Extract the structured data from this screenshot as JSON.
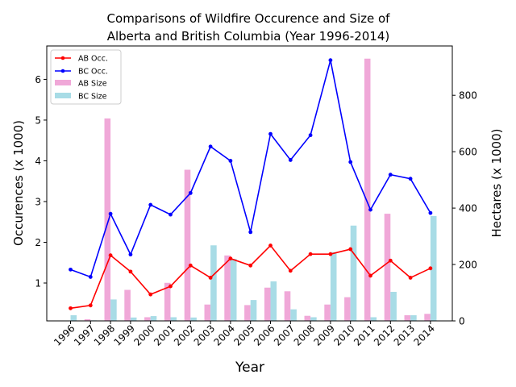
{
  "chart_data": {
    "type": "bar+line",
    "title_line1": "Comparisons of Wildfire Occurence and Size of",
    "title_line2": "Alberta and British Columbia (Year 1996-2014)",
    "xlabel": "Year",
    "ylabel_left": "Occurences (x 1000)",
    "ylabel_right": "Hectares (x 1000)",
    "categories": [
      "1996",
      "1997",
      "1998",
      "1999",
      "2000",
      "2001",
      "2002",
      "2003",
      "2004",
      "2005",
      "2006",
      "2007",
      "2008",
      "2009",
      "2010",
      "2011",
      "2012",
      "2013",
      "2014"
    ],
    "y_left_ticks": [
      "1",
      "2",
      "3",
      "4",
      "5",
      "6"
    ],
    "y_right_ticks": [
      "0",
      "200",
      "400",
      "600",
      "800"
    ],
    "y_left_lim": [
      0.07,
      6.82
    ],
    "y_right_lim": [
      0,
      975
    ],
    "lines": [
      {
        "name": "AB Occ.",
        "color": "#ff0000",
        "values": [
          0.38,
          0.45,
          1.68,
          1.28,
          0.72,
          0.92,
          1.43,
          1.13,
          1.6,
          1.43,
          1.92,
          1.3,
          1.71,
          1.71,
          1.83,
          1.18,
          1.55,
          1.13,
          1.36
        ]
      },
      {
        "name": "BC Occ.",
        "color": "#0000ff",
        "values": [
          1.33,
          1.15,
          2.7,
          1.7,
          2.92,
          2.68,
          3.21,
          4.35,
          4.0,
          2.25,
          4.66,
          4.02,
          4.63,
          6.47,
          3.97,
          2.8,
          3.66,
          3.56,
          2.72
        ]
      }
    ],
    "bars": [
      {
        "name": "AB Size",
        "color": "#f0a8d8",
        "values": [
          1,
          6,
          718,
          110,
          13,
          135,
          536,
          58,
          232,
          56,
          118,
          105,
          18,
          58,
          84,
          930,
          380,
          20,
          25
        ]
      },
      {
        "name": "BC Size",
        "color": "#a8dce6",
        "values": [
          20,
          2,
          76,
          12,
          17,
          13,
          12,
          268,
          220,
          74,
          140,
          41,
          13,
          244,
          338,
          13,
          103,
          20,
          372
        ]
      }
    ],
    "legend": {
      "placement": "top-left",
      "entries": [
        "AB Occ.",
        "BC Occ.",
        "AB Size",
        "BC Size"
      ]
    }
  }
}
